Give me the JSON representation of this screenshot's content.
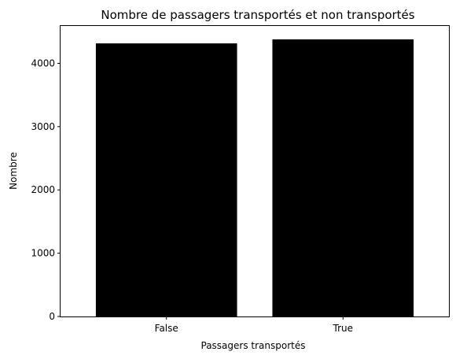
{
  "chart_data": {
    "type": "bar",
    "title": "Nombre de passagers transportés et non transportés",
    "xlabel": "Passagers transportés",
    "ylabel": "Nombre",
    "categories": [
      "False",
      "True"
    ],
    "values": [
      4315,
      4378
    ],
    "ylim": [
      0,
      4590
    ],
    "yticks": [
      0,
      1000,
      2000,
      3000,
      4000
    ],
    "bar_color": "#000000",
    "grid": false,
    "legend": "none"
  }
}
